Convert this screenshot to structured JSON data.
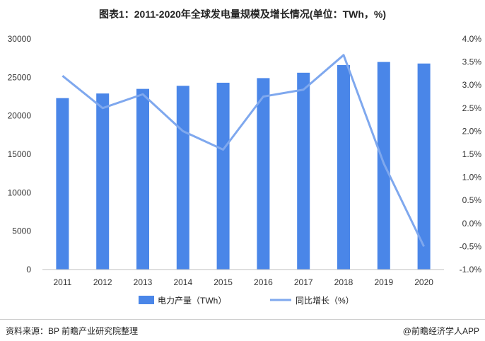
{
  "title": "图表1：2011-2020年全球发电量规模及增长情况(单位：TWh，%)",
  "footer": {
    "source": "资料来源：BP 前瞻产业研究院整理",
    "brand": "@前瞻经济学人APP"
  },
  "colors": {
    "bar": "#4a86e8",
    "line": "#7fa8ee"
  },
  "chart_data": {
    "type": "bar",
    "categories": [
      "2011",
      "2012",
      "2013",
      "2014",
      "2015",
      "2016",
      "2017",
      "2018",
      "2019",
      "2020"
    ],
    "series": [
      {
        "name": "电力产量（TWh）",
        "type": "bar",
        "axis": "left",
        "values": [
          22300,
          22900,
          23500,
          23900,
          24300,
          24900,
          25600,
          26600,
          27000,
          26800
        ]
      },
      {
        "name": "同比增长（%）",
        "type": "line",
        "axis": "right",
        "values": [
          3.2,
          2.5,
          2.8,
          2.0,
          1.6,
          2.75,
          2.9,
          3.65,
          1.3,
          -0.5
        ]
      }
    ],
    "y_left": {
      "ylim": [
        0,
        30000
      ],
      "ticks": [
        0,
        5000,
        10000,
        15000,
        20000,
        25000,
        30000
      ],
      "tick_labels": [
        "0",
        "5000",
        "10000",
        "15000",
        "20000",
        "25000",
        "30000"
      ]
    },
    "y_right": {
      "ylim": [
        -1.0,
        4.0
      ],
      "ticks": [
        -1.0,
        -0.5,
        0.0,
        0.5,
        1.0,
        1.5,
        2.0,
        2.5,
        3.0,
        3.5,
        4.0
      ],
      "tick_labels": [
        "-1.0%",
        "-0.5%",
        "0.0%",
        "0.5%",
        "1.0%",
        "1.5%",
        "2.0%",
        "2.5%",
        "3.0%",
        "3.5%",
        "4.0%"
      ]
    },
    "legend": "bottom-center",
    "grid": false
  }
}
